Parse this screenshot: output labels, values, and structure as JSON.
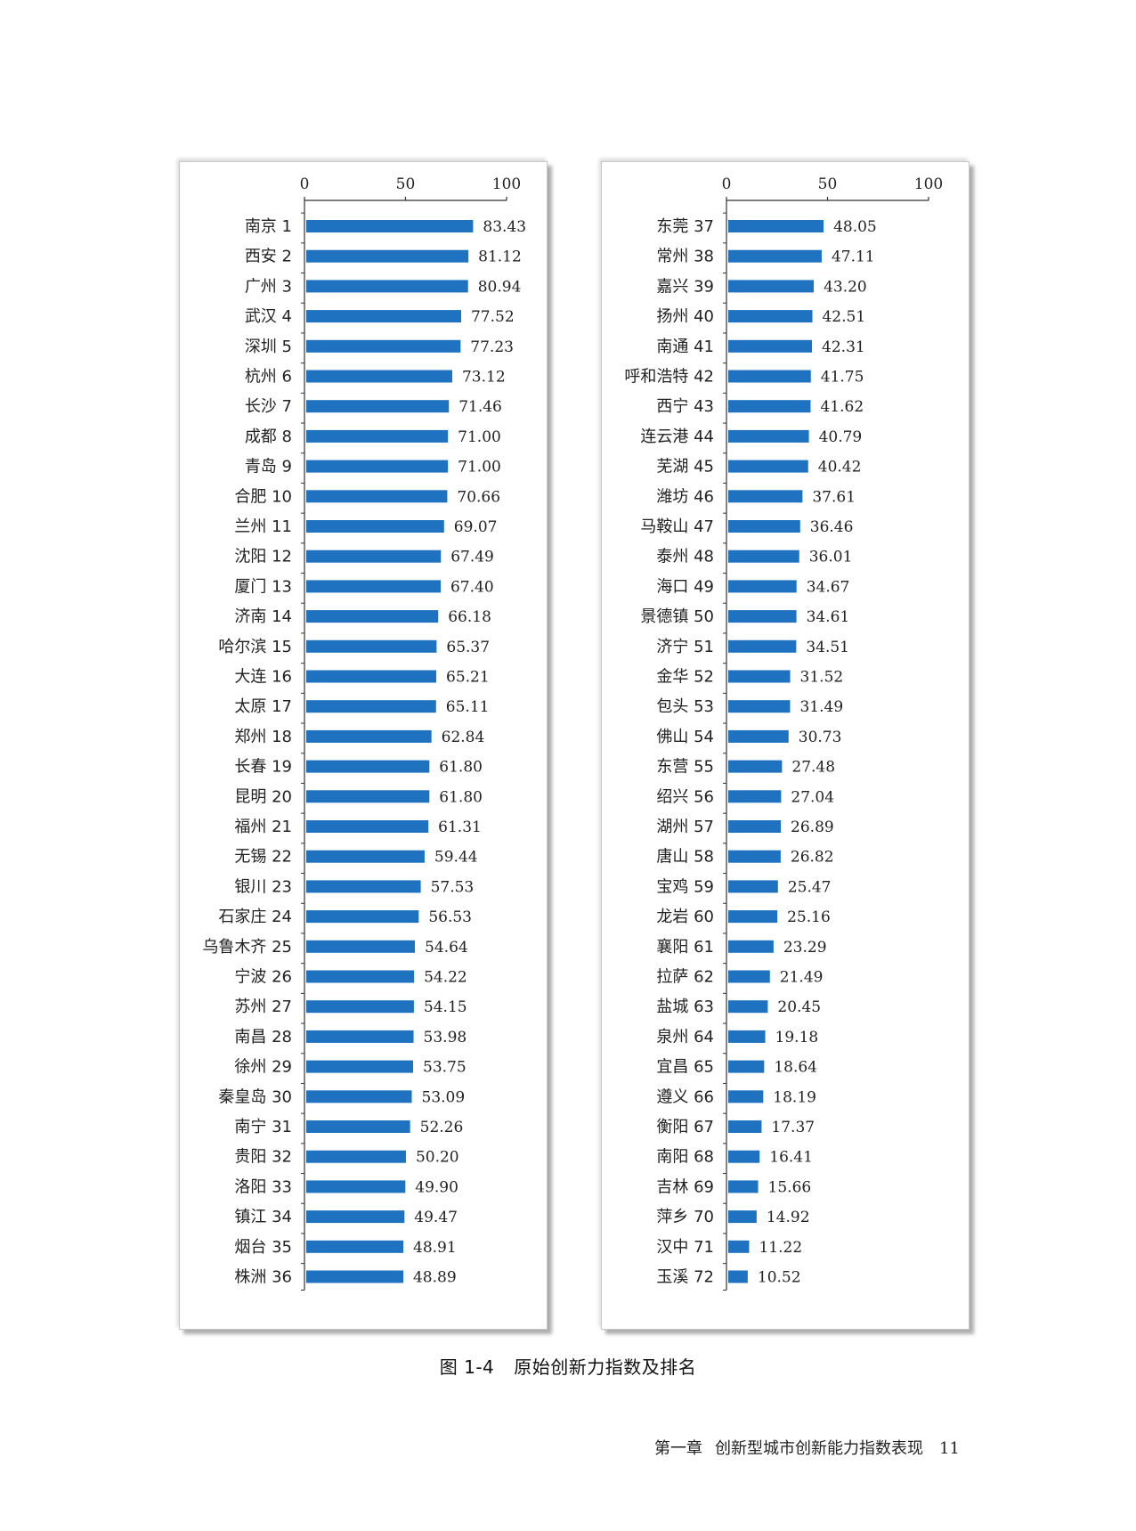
{
  "chart_data": [
    {
      "type": "bar",
      "orientation": "horizontal",
      "xlim": [
        0,
        100
      ],
      "xticks": [
        "0",
        "50",
        "100"
      ],
      "bar_color": "#1f72c0",
      "categories": [
        "南京 1",
        "西安 2",
        "广州 3",
        "武汉 4",
        "深圳 5",
        "杭州 6",
        "长沙 7",
        "成都 8",
        "青岛 9",
        "合肥 10",
        "兰州 11",
        "沈阳 12",
        "厦门 13",
        "济南 14",
        "哈尔滨 15",
        "大连 16",
        "太原 17",
        "郑州 18",
        "长春 19",
        "昆明 20",
        "福州 21",
        "无锡 22",
        "银川 23",
        "石家庄 24",
        "乌鲁木齐 25",
        "宁波 26",
        "苏州 27",
        "南昌 28",
        "徐州 29",
        "秦皇岛 30",
        "南宁 31",
        "贵阳 32",
        "洛阳 33",
        "镇江 34",
        "烟台 35",
        "株洲 36"
      ],
      "value_labels": [
        "83.43",
        "81.12",
        "80.94",
        "77.52",
        "77.23",
        "73.12",
        "71.46",
        "71.00",
        "71.00",
        "70.66",
        "69.07",
        "67.49",
        "67.40",
        "66.18",
        "65.37",
        "65.21",
        "65.11",
        "62.84",
        "61.80",
        "61.80",
        "61.31",
        "59.44",
        "57.53",
        "56.53",
        "54.64",
        "54.22",
        "54.15",
        "53.98",
        "53.75",
        "53.09",
        "52.26",
        "50.20",
        "49.90",
        "49.47",
        "48.91",
        "48.89"
      ],
      "values": [
        83.43,
        81.12,
        80.94,
        77.52,
        77.23,
        73.12,
        71.46,
        71.0,
        71.0,
        70.66,
        69.07,
        67.49,
        67.4,
        66.18,
        65.37,
        65.21,
        65.11,
        62.84,
        61.8,
        61.8,
        61.31,
        59.44,
        57.53,
        56.53,
        54.64,
        54.22,
        54.15,
        53.98,
        53.75,
        53.09,
        52.26,
        50.2,
        49.9,
        49.47,
        48.91,
        48.89
      ]
    },
    {
      "type": "bar",
      "orientation": "horizontal",
      "xlim": [
        0,
        100
      ],
      "xticks": [
        "0",
        "50",
        "100"
      ],
      "bar_color": "#1f72c0",
      "categories": [
        "东莞 37",
        "常州 38",
        "嘉兴 39",
        "扬州 40",
        "南通 41",
        "呼和浩特 42",
        "西宁 43",
        "连云港 44",
        "芜湖 45",
        "潍坊 46",
        "马鞍山 47",
        "泰州 48",
        "海口 49",
        "景德镇 50",
        "济宁 51",
        "金华 52",
        "包头 53",
        "佛山 54",
        "东营 55",
        "绍兴 56",
        "湖州 57",
        "唐山 58",
        "宝鸡 59",
        "龙岩 60",
        "襄阳 61",
        "拉萨 62",
        "盐城 63",
        "泉州 64",
        "宜昌 65",
        "遵义 66",
        "衡阳 67",
        "南阳 68",
        "吉林 69",
        "萍乡 70",
        "汉中 71",
        "玉溪 72"
      ],
      "value_labels": [
        "48.05",
        "47.11",
        "43.20",
        "42.51",
        "42.31",
        "41.75",
        "41.62",
        "40.79",
        "40.42",
        "37.61",
        "36.46",
        "36.01",
        "34.67",
        "34.61",
        "34.51",
        "31.52",
        "31.49",
        "30.73",
        "27.48",
        "27.04",
        "26.89",
        "26.82",
        "25.47",
        "25.16",
        "23.29",
        "21.49",
        "20.45",
        "19.18",
        "18.64",
        "18.19",
        "17.37",
        "16.41",
        "15.66",
        "14.92",
        "11.22",
        "10.52"
      ],
      "values": [
        48.05,
        47.11,
        43.2,
        42.51,
        42.31,
        41.75,
        41.62,
        40.79,
        40.42,
        37.61,
        36.46,
        36.01,
        34.67,
        34.61,
        34.51,
        31.52,
        31.49,
        30.73,
        27.48,
        27.04,
        26.89,
        26.82,
        25.47,
        25.16,
        23.29,
        21.49,
        20.45,
        19.18,
        18.64,
        18.19,
        17.37,
        16.41,
        15.66,
        14.92,
        11.22,
        10.52
      ]
    }
  ],
  "caption": {
    "figure_no": "图 1-4",
    "title": "原始创新力指数及排名"
  },
  "footer": {
    "chapter": "第一章",
    "chapter_title": "创新型城市创新能力指数表现",
    "page_number": "11"
  }
}
